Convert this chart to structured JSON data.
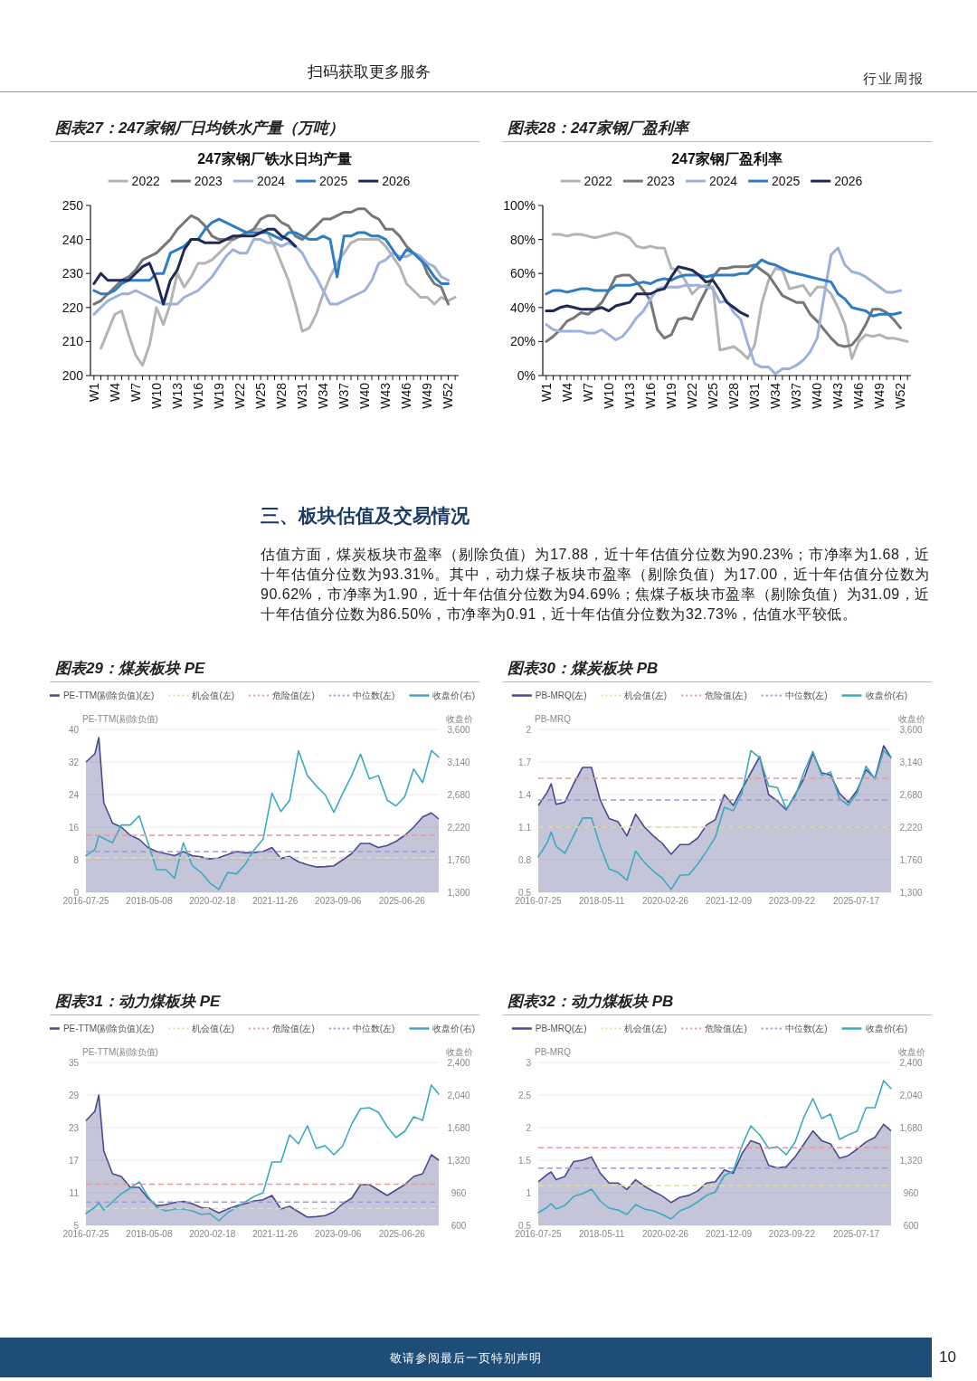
{
  "chart_data": [
    {
      "type": "other",
      "annotations": [
        "扫码获取更多服务",
        "行业周报"
      ]
    },
    {
      "type": "line",
      "title": "图表27：247家钢厂日均铁水产量（万吨）",
      "subtitle": "247家钢厂铁水日均产量",
      "legend": "top",
      "line_style": "solid",
      "categories": [
        "W1",
        null,
        null,
        "W4",
        null,
        null,
        "W7",
        null,
        null,
        "W10",
        null,
        null,
        "W13",
        null,
        null,
        "W16",
        null,
        null,
        "W19",
        null,
        null,
        "W22",
        null,
        null,
        "W25",
        null,
        null,
        "W28",
        null,
        null,
        "W31",
        null,
        null,
        "W34",
        null,
        null,
        "W37",
        null,
        null,
        "W40",
        null,
        null,
        "W43",
        null,
        null,
        "W46",
        null,
        null,
        "W49",
        null,
        null,
        "W52",
        null
      ],
      "ylim": [
        200,
        250
      ],
      "yticks": [
        200,
        210,
        220,
        230,
        240,
        250
      ],
      "series": [
        {
          "name": "2022",
          "color": "#b4b4b4",
          "values": [
            null,
            208,
            213,
            218,
            219,
            212,
            206,
            203,
            209,
            220,
            215,
            221,
            230,
            226,
            229,
            233,
            233,
            234,
            236,
            238,
            240,
            241,
            242,
            243,
            243,
            242,
            238,
            233,
            228,
            221,
            213,
            214,
            218,
            224,
            229,
            233,
            236,
            239,
            240,
            240,
            240,
            240,
            238,
            235,
            232,
            227,
            225,
            223,
            223,
            221,
            223,
            222,
            223
          ]
        },
        {
          "name": "2023",
          "color": "#777777",
          "values": [
            221,
            222,
            224,
            226,
            228,
            229,
            231,
            234,
            235,
            236,
            238,
            240,
            243,
            245,
            247,
            246,
            244,
            241,
            240,
            240,
            240,
            241,
            242,
            243,
            246,
            247,
            247,
            245,
            244,
            241,
            240,
            242,
            244,
            246,
            246,
            247,
            248,
            248,
            249,
            249,
            247,
            246,
            243,
            243,
            241,
            238,
            236,
            235,
            230,
            227,
            226,
            221,
            null
          ]
        },
        {
          "name": "2024",
          "color": "#9cb2da",
          "values": [
            218,
            220,
            222,
            223,
            224,
            224,
            225,
            224,
            223,
            222,
            221,
            221,
            221,
            223,
            224,
            225,
            227,
            229,
            232,
            235,
            237,
            236,
            236,
            240,
            240,
            239,
            239,
            238,
            239,
            238,
            236,
            232,
            229,
            225,
            221,
            221,
            222,
            223,
            224,
            225,
            228,
            233,
            234,
            236,
            235,
            235,
            236,
            235,
            233,
            232,
            229,
            228,
            null
          ]
        },
        {
          "name": "2025",
          "color": "#2e7cc4",
          "values": [
            225,
            224,
            224,
            225,
            227,
            228,
            228,
            228,
            228,
            230,
            230,
            236,
            237,
            238,
            240,
            240,
            243,
            245,
            246,
            245,
            244,
            243,
            242,
            242,
            242,
            242,
            241,
            240,
            242,
            242,
            241,
            240,
            240,
            241,
            240,
            229,
            241,
            241,
            242,
            242,
            241,
            241,
            240,
            237,
            234,
            237,
            236,
            234,
            232,
            229,
            227,
            227,
            null
          ]
        },
        {
          "name": "2026",
          "color": "#1f2a56",
          "values": [
            227,
            230,
            228,
            228,
            228,
            228,
            230,
            232,
            233,
            228,
            221,
            228,
            231,
            237,
            240,
            240,
            239,
            239,
            239,
            240,
            241,
            241,
            241,
            241,
            242,
            243,
            243,
            241,
            240,
            238,
            null,
            null,
            null,
            null,
            null,
            null,
            null,
            null,
            null,
            null,
            null,
            null,
            null,
            null,
            null,
            null,
            null,
            null,
            null,
            null,
            null,
            null,
            null
          ]
        }
      ]
    },
    {
      "type": "line",
      "title": "图表28：247家钢厂盈利率",
      "subtitle": "247家钢厂盈利率",
      "legend": "top",
      "line_style": "solid",
      "categories": [
        "W1",
        null,
        null,
        "W4",
        null,
        null,
        "W7",
        null,
        null,
        "W10",
        null,
        null,
        "W13",
        null,
        null,
        "W16",
        null,
        null,
        "W19",
        null,
        null,
        "W22",
        null,
        null,
        "W25",
        null,
        null,
        "W28",
        null,
        null,
        "W31",
        null,
        null,
        "W34",
        null,
        null,
        "W37",
        null,
        null,
        "W40",
        null,
        null,
        "W43",
        null,
        null,
        "W46",
        null,
        null,
        "W49",
        null,
        null,
        "W52",
        null
      ],
      "ylim": [
        0,
        100
      ],
      "yticks": [
        {
          "value": 0,
          "label": "0%"
        },
        {
          "value": 20,
          "label": "20%"
        },
        {
          "value": 40,
          "label": "40%"
        },
        {
          "value": 60,
          "label": "60%"
        },
        {
          "value": 80,
          "label": "80%"
        },
        {
          "value": 100,
          "label": "100%"
        }
      ],
      "series": [
        {
          "name": "2022",
          "color": "#b4b4b4",
          "values": [
            null,
            83,
            83,
            82,
            83,
            83,
            82,
            81,
            82,
            83,
            84,
            83,
            81,
            76,
            75,
            76,
            75,
            75,
            63,
            62,
            56,
            48,
            52,
            53,
            52,
            15,
            16,
            17,
            14,
            10,
            18,
            42,
            56,
            63,
            62,
            51,
            52,
            53,
            47,
            52,
            52,
            48,
            40,
            30,
            10,
            20,
            24,
            23,
            24,
            22,
            22,
            21,
            20
          ]
        },
        {
          "name": "2023",
          "color": "#777777",
          "values": [
            20,
            23,
            27,
            32,
            34,
            37,
            36,
            39,
            43,
            50,
            58,
            59,
            59,
            55,
            50,
            44,
            27,
            22,
            24,
            33,
            34,
            33,
            42,
            50,
            58,
            63,
            63,
            64,
            64,
            64,
            65,
            62,
            59,
            53,
            47,
            45,
            43,
            43,
            36,
            32,
            27,
            22,
            18,
            17,
            18,
            23,
            30,
            39,
            39,
            37,
            33,
            28,
            null
          ]
        },
        {
          "name": "2024",
          "color": "#9cb2da",
          "values": [
            30,
            27,
            26,
            26,
            26,
            26,
            25,
            25,
            27,
            24,
            21,
            23,
            28,
            34,
            38,
            45,
            51,
            52,
            52,
            52,
            53,
            53,
            53,
            52,
            51,
            43,
            44,
            37,
            33,
            19,
            7,
            5,
            5,
            1,
            4,
            4,
            6,
            9,
            14,
            22,
            47,
            71,
            75,
            65,
            61,
            60,
            58,
            55,
            52,
            49,
            49,
            50,
            null
          ]
        },
        {
          "name": "2025",
          "color": "#2e7cc4",
          "values": [
            48,
            50,
            50,
            49,
            50,
            51,
            51,
            50,
            50,
            50,
            53,
            53,
            53,
            54,
            55,
            54,
            56,
            57,
            56,
            58,
            59,
            59,
            59,
            58,
            59,
            59,
            59,
            59,
            60,
            60,
            64,
            68,
            66,
            65,
            63,
            61,
            60,
            59,
            58,
            57,
            56,
            55,
            48,
            45,
            40,
            39,
            38,
            35,
            36,
            36,
            36,
            37,
            null
          ]
        },
        {
          "name": "2026",
          "color": "#1f2a56",
          "values": [
            38,
            38,
            40,
            41,
            40,
            39,
            39,
            39,
            40,
            38,
            41,
            42,
            43,
            48,
            48,
            48,
            50,
            51,
            58,
            64,
            63,
            62,
            59,
            55,
            56,
            50,
            43,
            40,
            37,
            35,
            null,
            null,
            null,
            null,
            null,
            null,
            null,
            null,
            null,
            null,
            null,
            null,
            null,
            null,
            null,
            null,
            null,
            null,
            null,
            null,
            null,
            null,
            null
          ]
        }
      ]
    },
    {
      "type": "other",
      "title": "三、板块估值及交易情况",
      "annotations": [
        "估值方面，煤炭板块市盈率（剔除负值）为17.88，近十年估值分位数为90.23%；市净率为1.68，近十年估值分位数为93.31%。其中，动力煤子板块市盈率（剔除负值）为17.00，近十年估值分位数为90.62%，市净率为1.90，近十年估值分位数为94.69%；焦煤子板块市盈率（剔除负值）为31.09，近十年估值分位数为86.50%，市净率为0.91，近十年估值分位数为32.73%，估值水平较低。"
      ]
    },
    {
      "type": "line",
      "title": "图表29：煤炭板块 PE",
      "ylabel": "PE-TTM(剔除负值)",
      "y2label": "收盘价",
      "legend": "top",
      "grid": "y",
      "line_style": "solid",
      "x": [
        "2016-07-25",
        "2016-10-25",
        "2016-12-05",
        "2017-01-25",
        "2017-04-25",
        "2017-07-25",
        "2017-10-25",
        "2018-01-25",
        "2018-04-25",
        "2018-07-25",
        "2018-10-25",
        "2019-01-25",
        "2019-04-25",
        "2019-07-25",
        "2019-10-25",
        "2020-01-25",
        "2020-04-25",
        "2020-07-25",
        "2020-10-25",
        "2021-01-25",
        "2021-04-25",
        "2021-07-25",
        "2021-10-25",
        "2022-01-25",
        "2022-04-25",
        "2022-07-25",
        "2022-10-25",
        "2023-01-25",
        "2023-04-25",
        "2023-07-25",
        "2023-10-25",
        "2024-01-25",
        "2024-04-25",
        "2024-07-25",
        "2024-10-25",
        "2025-01-25",
        "2025-04-25",
        "2025-07-25",
        "2025-10-25",
        "2026-01-25",
        "2026-04-25",
        "2026-07-10"
      ],
      "xlim": [
        "2016-07-25",
        "2026-07-10"
      ],
      "xticks": [
        "2016-07-25",
        "2018-05-08",
        "2020-02-18",
        "2021-11-26",
        "2023-09-06",
        "2025-06-26"
      ],
      "ylim": [
        0,
        40
      ],
      "yticks": [
        0,
        8,
        16,
        24,
        32,
        40
      ],
      "y2lim": [
        1300,
        3600
      ],
      "y2ticks": [
        {
          "value": 1300,
          "label": "1,300"
        },
        {
          "value": 1760,
          "label": "1,760"
        },
        {
          "value": 2220,
          "label": "2,220"
        },
        {
          "value": 2680,
          "label": "2,680"
        },
        {
          "value": 3140,
          "label": "3,140"
        },
        {
          "value": 3600,
          "label": "3,600"
        }
      ],
      "ref_lines": [
        {
          "axis": "y",
          "value": 8.5,
          "label": "机会值(左)",
          "color": "#e6dc98",
          "line_style": "dashed"
        },
        {
          "axis": "y",
          "value": 14,
          "label": "危险值(左)",
          "color": "#e39a9a",
          "line_style": "dashed"
        },
        {
          "axis": "y",
          "value": 10,
          "label": "中位数(左)",
          "color": "#9a99d6",
          "line_style": "dashed"
        }
      ],
      "series": [
        {
          "name": "PE-TTM(剔除负值)(左)",
          "type": "area",
          "color": "#4b4a8c",
          "values": [
            32,
            34,
            38,
            22,
            17,
            16,
            14,
            13,
            11,
            10,
            9.5,
            9,
            10,
            9,
            8.7,
            8.2,
            8.5,
            9.3,
            10,
            9.7,
            9.8,
            10,
            11,
            8.3,
            8.8,
            7.5,
            6.8,
            6.2,
            6.3,
            6.5,
            8,
            9.5,
            12,
            12,
            11,
            11.5,
            12.5,
            14,
            16,
            18.5,
            19.5,
            18
          ]
        },
        {
          "name": "收盘价(右)",
          "type": "line",
          "axis": "y2",
          "color": "#3aaabf",
          "values": [
            1820,
            1900,
            2100,
            2060,
            2000,
            2250,
            2250,
            2380,
            2000,
            1620,
            1620,
            1500,
            2000,
            1680,
            1580,
            1430,
            1340,
            1580,
            1560,
            1700,
            1900,
            2050,
            2700,
            2440,
            2600,
            3300,
            2950,
            2800,
            2680,
            2430,
            2700,
            2950,
            3250,
            2900,
            2950,
            2600,
            2520,
            2650,
            3040,
            2850,
            3300,
            3210
          ]
        }
      ]
    },
    {
      "type": "line",
      "title": "图表30：煤炭板块 PB",
      "ylabel": "PB-MRQ",
      "y2label": "收盘价",
      "legend": "top",
      "grid": "y",
      "line_style": "solid",
      "x": [
        "2016-07-25",
        "2016-10-25",
        "2016-12-05",
        "2017-01-25",
        "2017-04-25",
        "2017-07-25",
        "2017-10-25",
        "2018-01-25",
        "2018-04-25",
        "2018-07-25",
        "2018-10-25",
        "2019-01-25",
        "2019-04-25",
        "2019-07-25",
        "2019-10-25",
        "2020-01-25",
        "2020-04-25",
        "2020-07-25",
        "2020-10-25",
        "2021-01-25",
        "2021-04-25",
        "2021-07-25",
        "2021-10-25",
        "2022-01-25",
        "2022-04-25",
        "2022-07-25",
        "2022-10-25",
        "2023-01-25",
        "2023-04-25",
        "2023-07-25",
        "2023-10-25",
        "2024-01-25",
        "2024-04-25",
        "2024-07-25",
        "2024-10-25",
        "2025-01-25",
        "2025-04-25",
        "2025-07-25",
        "2025-10-25",
        "2026-01-25",
        "2026-04-25",
        "2026-07-10"
      ],
      "xlim": [
        "2016-07-25",
        "2026-07-10"
      ],
      "xticks": [
        "2016-07-25",
        "2018-05-11",
        "2020-02-26",
        "2021-12-09",
        "2023-09-22",
        "2025-07-17"
      ],
      "ylim": [
        0.5,
        2
      ],
      "yticks": [
        0.5,
        0.8,
        1.1,
        1.4,
        1.7,
        2
      ],
      "y2lim": [
        1300,
        3600
      ],
      "y2ticks": [
        {
          "value": 1300,
          "label": "1,300"
        },
        {
          "value": 1760,
          "label": "1,760"
        },
        {
          "value": 2220,
          "label": "2,220"
        },
        {
          "value": 2680,
          "label": "2,680"
        },
        {
          "value": 3140,
          "label": "3,140"
        },
        {
          "value": 3600,
          "label": "3,600"
        }
      ],
      "ref_lines": [
        {
          "axis": "y",
          "value": 1.1,
          "label": "机会值(左)",
          "color": "#e6dc98",
          "line_style": "dashed"
        },
        {
          "axis": "y",
          "value": 1.55,
          "label": "危险值(左)",
          "color": "#e39a9a",
          "line_style": "dashed"
        },
        {
          "axis": "y",
          "value": 1.35,
          "label": "中位数(左)",
          "color": "#9a99d6",
          "line_style": "dashed"
        }
      ],
      "series": [
        {
          "name": "PB-MRQ(左)",
          "type": "area",
          "color": "#4b4a8c",
          "values": [
            1.3,
            1.42,
            1.5,
            1.31,
            1.33,
            1.5,
            1.65,
            1.65,
            1.35,
            1.18,
            1.15,
            1.02,
            1.22,
            1.1,
            1.02,
            0.95,
            0.85,
            0.94,
            0.94,
            1.0,
            1.12,
            1.17,
            1.4,
            1.3,
            1.45,
            1.6,
            1.75,
            1.4,
            1.34,
            1.26,
            1.4,
            1.55,
            1.78,
            1.6,
            1.58,
            1.41,
            1.33,
            1.44,
            1.63,
            1.55,
            1.85,
            1.74
          ]
        },
        {
          "name": "收盘价(右)",
          "type": "line",
          "axis": "y2",
          "color": "#3aaabf",
          "values": [
            1800,
            2000,
            2150,
            1950,
            1850,
            2100,
            2350,
            2350,
            1950,
            1630,
            1580,
            1470,
            1880,
            1720,
            1600,
            1500,
            1340,
            1540,
            1550,
            1700,
            1880,
            2080,
            2500,
            2450,
            2700,
            3300,
            3200,
            2800,
            2780,
            2480,
            2650,
            3000,
            3290,
            2950,
            3000,
            2620,
            2530,
            2700,
            3080,
            2900,
            3300,
            3200
          ]
        }
      ]
    },
    {
      "type": "line",
      "title": "图表31：动力煤板块 PE",
      "ylabel": "PE-TTM(剔除负值)",
      "y2label": "收盘价",
      "legend": "top",
      "grid": "y",
      "line_style": "solid",
      "x": [
        "2016-07-25",
        "2016-10-25",
        "2016-12-05",
        "2017-01-25",
        "2017-04-25",
        "2017-07-25",
        "2017-10-25",
        "2018-01-25",
        "2018-04-25",
        "2018-07-25",
        "2018-10-25",
        "2019-01-25",
        "2019-04-25",
        "2019-07-25",
        "2019-10-25",
        "2020-01-25",
        "2020-04-25",
        "2020-07-25",
        "2020-10-25",
        "2021-01-25",
        "2021-04-25",
        "2021-07-25",
        "2021-10-25",
        "2022-01-25",
        "2022-04-25",
        "2022-07-25",
        "2022-10-25",
        "2023-01-25",
        "2023-04-25",
        "2023-07-25",
        "2023-10-25",
        "2024-01-25",
        "2024-04-25",
        "2024-07-25",
        "2024-10-25",
        "2025-01-25",
        "2025-04-25",
        "2025-07-25",
        "2025-10-25",
        "2026-01-25",
        "2026-04-25",
        "2026-07-10"
      ],
      "xlim": [
        "2016-07-25",
        "2026-07-10"
      ],
      "xticks": [
        "2016-07-25",
        "2018-05-08",
        "2020-02-18",
        "2021-11-26",
        "2023-09-06",
        "2025-06-26"
      ],
      "ylim": [
        5,
        35
      ],
      "yticks": [
        5,
        11,
        17,
        23,
        29,
        35
      ],
      "y2lim": [
        600,
        2400
      ],
      "y2ticks": [
        {
          "value": 600,
          "label": "600"
        },
        {
          "value": 960,
          "label": "960"
        },
        {
          "value": 1320,
          "label": "1,320"
        },
        {
          "value": 1680,
          "label": "1,680"
        },
        {
          "value": 2040,
          "label": "2,040"
        },
        {
          "value": 2400,
          "label": "2,400"
        }
      ],
      "ref_lines": [
        {
          "axis": "y",
          "value": 8.1,
          "label": "机会值(左)",
          "color": "#e6dc98",
          "line_style": "dashed"
        },
        {
          "axis": "y",
          "value": 12.6,
          "label": "危险值(左)",
          "color": "#e39a9a",
          "line_style": "dashed"
        },
        {
          "axis": "y",
          "value": 9.3,
          "label": "中位数(左)",
          "color": "#9a99d6",
          "line_style": "dashed"
        }
      ],
      "series": [
        {
          "name": "PE-TTM(剔除负值)(左)",
          "type": "area",
          "color": "#4b4a8c",
          "values": [
            24.3,
            26,
            29,
            18.7,
            14.5,
            14,
            12,
            12,
            10,
            8.6,
            8.8,
            9.2,
            9.4,
            9,
            8.3,
            8.1,
            7.3,
            8,
            8.6,
            9,
            9.5,
            9.7,
            10.5,
            8,
            8.5,
            7.5,
            6.5,
            6.6,
            6.8,
            7.5,
            9,
            10,
            12.5,
            12.5,
            11.5,
            10.5,
            11.5,
            12.5,
            14,
            14.5,
            18,
            17
          ]
        },
        {
          "name": "收盘价(右)",
          "type": "line",
          "axis": "y2",
          "color": "#3aaabf",
          "values": [
            730,
            800,
            850,
            770,
            860,
            950,
            1010,
            1080,
            920,
            800,
            760,
            780,
            780,
            760,
            720,
            730,
            650,
            740,
            800,
            860,
            920,
            960,
            1300,
            1300,
            1600,
            1500,
            1700,
            1450,
            1480,
            1380,
            1480,
            1720,
            1890,
            1900,
            1850,
            1690,
            1570,
            1640,
            1800,
            1760,
            2150,
            2050
          ]
        }
      ]
    },
    {
      "type": "line",
      "title": "图表32：动力煤板块 PB",
      "ylabel": "PB-MRQ",
      "y2label": "收盘价",
      "legend": "top",
      "grid": "y",
      "line_style": "solid",
      "x": [
        "2016-07-25",
        "2016-10-25",
        "2016-12-05",
        "2017-01-25",
        "2017-04-25",
        "2017-07-25",
        "2017-10-25",
        "2018-01-25",
        "2018-04-25",
        "2018-07-25",
        "2018-10-25",
        "2019-01-25",
        "2019-04-25",
        "2019-07-25",
        "2019-10-25",
        "2020-01-25",
        "2020-04-25",
        "2020-07-25",
        "2020-10-25",
        "2021-01-25",
        "2021-04-25",
        "2021-07-25",
        "2021-10-25",
        "2022-01-25",
        "2022-04-25",
        "2022-07-25",
        "2022-10-25",
        "2023-01-25",
        "2023-04-25",
        "2023-07-25",
        "2023-10-25",
        "2024-01-25",
        "2024-04-25",
        "2024-07-25",
        "2024-10-25",
        "2025-01-25",
        "2025-04-25",
        "2025-07-25",
        "2025-10-25",
        "2026-01-25",
        "2026-04-25",
        "2026-07-10"
      ],
      "xlim": [
        "2016-07-25",
        "2026-07-10"
      ],
      "xticks": [
        "2016-07-25",
        "2018-05-11",
        "2020-02-26",
        "2021-12-09",
        "2023-09-22",
        "2025-07-17"
      ],
      "ylim": [
        0.5,
        3
      ],
      "yticks": [
        0.5,
        1,
        1.5,
        2,
        2.5,
        3
      ],
      "y2lim": [
        600,
        2400
      ],
      "y2ticks": [
        {
          "value": 600,
          "label": "600"
        },
        {
          "value": 960,
          "label": "960"
        },
        {
          "value": 1320,
          "label": "1,320"
        },
        {
          "value": 1680,
          "label": "1,680"
        },
        {
          "value": 2040,
          "label": "2,040"
        },
        {
          "value": 2400,
          "label": "2,400"
        }
      ],
      "ref_lines": [
        {
          "axis": "y",
          "value": 1.11,
          "label": "机会值(左)",
          "color": "#e6dc98",
          "line_style": "dashed"
        },
        {
          "axis": "y",
          "value": 1.69,
          "label": "危险值(左)",
          "color": "#e39a9a",
          "line_style": "dashed"
        },
        {
          "axis": "y",
          "value": 1.38,
          "label": "中位数(左)",
          "color": "#9a99d6",
          "line_style": "dashed"
        }
      ],
      "series": [
        {
          "name": "PB-MRQ(左)",
          "type": "area",
          "color": "#4b4a8c",
          "values": [
            1.17,
            1.28,
            1.32,
            1.2,
            1.25,
            1.48,
            1.5,
            1.55,
            1.3,
            1.15,
            1.15,
            1.05,
            1.2,
            1.1,
            1.02,
            0.95,
            0.85,
            0.93,
            0.96,
            1.03,
            1.15,
            1.17,
            1.35,
            1.3,
            1.6,
            1.8,
            1.75,
            1.42,
            1.38,
            1.4,
            1.55,
            1.75,
            1.95,
            1.8,
            1.75,
            1.53,
            1.57,
            1.67,
            1.78,
            1.85,
            2.05,
            1.95
          ]
        },
        {
          "name": "收盘价(右)",
          "type": "line",
          "axis": "y2",
          "color": "#3aaabf",
          "values": [
            740,
            800,
            840,
            780,
            820,
            920,
            950,
            1000,
            870,
            790,
            770,
            720,
            830,
            780,
            760,
            720,
            670,
            760,
            800,
            860,
            930,
            970,
            1150,
            1200,
            1480,
            1700,
            1600,
            1450,
            1470,
            1380,
            1520,
            1800,
            2000,
            1780,
            1830,
            1550,
            1600,
            1640,
            1900,
            1900,
            2200,
            2110
          ]
        }
      ]
    },
    {
      "type": "other",
      "annotations": [
        "敬请参阅最后一页特别声明",
        "10"
      ]
    }
  ]
}
